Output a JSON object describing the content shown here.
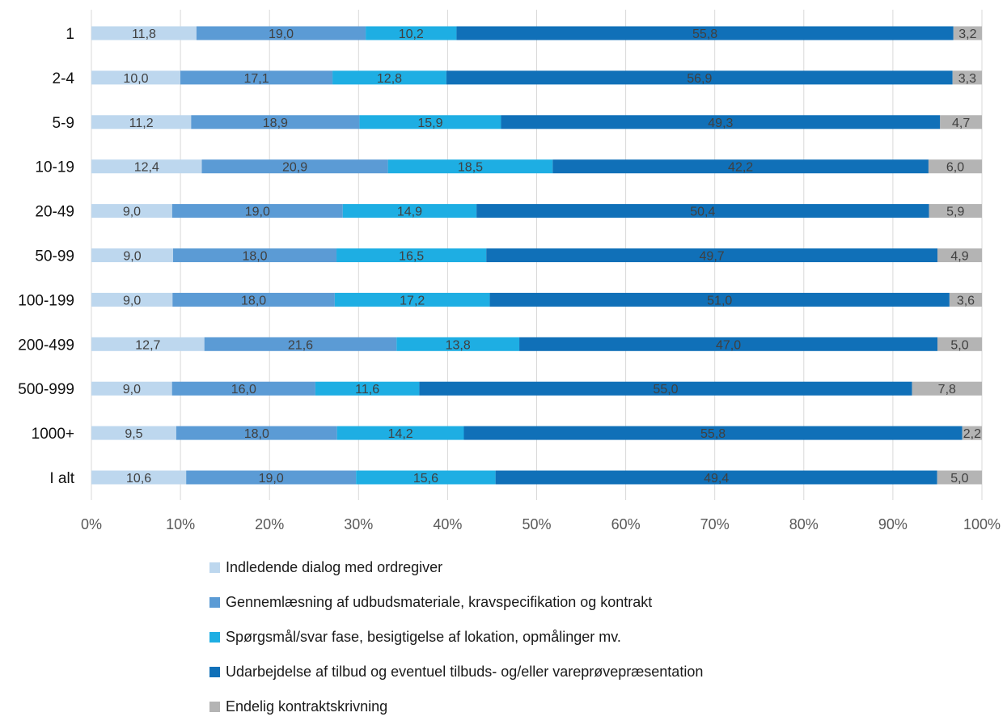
{
  "chart_data": {
    "type": "bar",
    "orientation": "horizontal",
    "stacked": "100%",
    "categories": [
      "1",
      "2-4",
      "5-9",
      "10-19",
      "20-49",
      "50-99",
      "100-199",
      "200-499",
      "500-999",
      "1000+",
      "I alt"
    ],
    "series": [
      {
        "name": "Indledende dialog med ordregiver",
        "color": "#BDD7EE",
        "values": [
          11.8,
          10.0,
          11.2,
          12.4,
          9.0,
          9.0,
          9.0,
          12.7,
          9.0,
          9.5,
          10.6
        ],
        "labels": [
          "11,8",
          "10,0",
          "11,2",
          "12,4",
          "9,0",
          "9,0",
          "9,0",
          "12,7",
          "9,0",
          "9,5",
          "10,6"
        ]
      },
      {
        "name": "Gennemlæsning af udbudsmateriale, kravspecifikation og kontrakt",
        "color": "#5B9BD5",
        "values": [
          19.0,
          17.1,
          18.9,
          20.9,
          19.0,
          18.0,
          18.0,
          21.6,
          16.0,
          18.0,
          19.0
        ],
        "labels": [
          "19,0",
          "17,1",
          "18,9",
          "20,9",
          "19,0",
          "18,0",
          "18,0",
          "21,6",
          "16,0",
          "18,0",
          "19,0"
        ]
      },
      {
        "name": "Spørgsmål/svar fase, besigtigelse af lokation, opmålinger mv.",
        "color": "#1EAEE3",
        "values": [
          10.2,
          12.8,
          15.9,
          18.5,
          14.9,
          16.5,
          17.2,
          13.8,
          11.6,
          14.2,
          15.6
        ],
        "labels": [
          "10,2",
          "12,8",
          "15,9",
          "18,5",
          "14,9",
          "16,5",
          "17,2",
          "13,8",
          "11,6",
          "14,2",
          "15,6"
        ]
      },
      {
        "name": "Udarbejdelse af tilbud og eventuel tilbuds- og/eller vareprøvepræsentation",
        "color": "#1070B8",
        "values": [
          55.8,
          56.9,
          49.3,
          42.2,
          50.4,
          49.7,
          51.0,
          47.0,
          55.0,
          55.8,
          49.4
        ],
        "labels": [
          "55,8",
          "56,9",
          "49,3",
          "42,2",
          "50,4",
          "49,7",
          "51,0",
          "47,0",
          "55,0",
          "55,8",
          "49,4"
        ]
      },
      {
        "name": "Endelig kontraktskrivning",
        "color": "#B4B4B4",
        "values": [
          3.2,
          3.3,
          4.7,
          6.0,
          5.9,
          4.9,
          3.6,
          5.0,
          7.8,
          2.2,
          5.0
        ],
        "labels": [
          "3,2",
          "3,3",
          "4,7",
          "6,0",
          "5,9",
          "4,9",
          "3,6",
          "5,0",
          "7,8",
          "2,2",
          "5,0"
        ]
      }
    ],
    "xticks": [
      "0%",
      "10%",
      "20%",
      "30%",
      "40%",
      "50%",
      "60%",
      "70%",
      "80%",
      "90%",
      "100%"
    ],
    "xlim": [
      0,
      100
    ],
    "grid": "vertical",
    "legend_position": "bottom",
    "title": "",
    "xlabel": "",
    "ylabel": ""
  }
}
